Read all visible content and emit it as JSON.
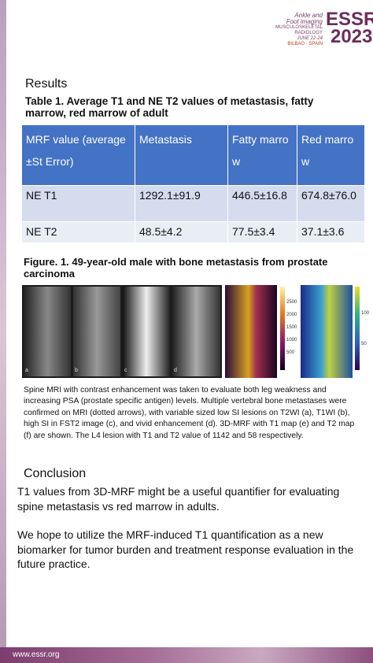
{
  "header": {
    "logo_line1": "Ankle and",
    "logo_line2": "Foot imaging",
    "logo_line3": "MUSCULOSKELETAL",
    "logo_line4": "RADIOLOGY",
    "logo_line5": "JUNE 22-24",
    "logo_line6": "BILBAO · SPAIN",
    "logo_name": "ESSR",
    "logo_year": "2023"
  },
  "results": {
    "heading": "Results",
    "table_title": "Table 1. Average T1 and NE T2 values of metastasis, fatty marrow, red marrow of adult",
    "table": {
      "header": [
        "MRF value (average±St Error)",
        "Metastasis",
        "Fatty marrow",
        "Red marrow"
      ],
      "rows": [
        [
          "NE T1",
          "1292.1±91.9",
          "446.5±16.8",
          "674.8±76.0"
        ],
        [
          "NE T2",
          "48.5±4.2",
          "77.5±3.4",
          "37.1±3.6"
        ]
      ]
    }
  },
  "figure": {
    "title": "Figure. 1. 49-year-old male with bone metastasis from prostate carcinoma",
    "panel_labels": [
      "a",
      "b",
      "c",
      "d"
    ],
    "t1_colorbar_ticks": [
      "2500",
      "2000",
      "1500",
      "1000",
      "500"
    ],
    "t2_colorbar_ticks": [
      "100",
      "50"
    ],
    "caption": "Spine MRI with contrast enhancement was taken to evaluate both leg weakness and increasing PSA (prostate specific antigen) levels. Multiple vertebral bone metastases were confirmed on MRI (dotted arrows), with variable sized low SI lesions on T2WI (a), T1WI (b), high SI in FST2 image (c), and vivid enhancement (d). 3D-MRF with T1 map (e) and T2 map (f) are shown. The L4 lesion with T1 and T2 value of 1142 and 58 respectively."
  },
  "conclusion": {
    "heading": "Conclusion",
    "paragraphs": [
      "T1 values from 3D-MRF might be a useful quantifier for evaluating spine metastasis vs red marrow in adults.",
      "We hope to utilize the MRF-induced T1 quantification as a new biomarker for tumor burden and treatment response evaluation in the future practice."
    ]
  },
  "footer": {
    "url": "www.essr.org"
  }
}
